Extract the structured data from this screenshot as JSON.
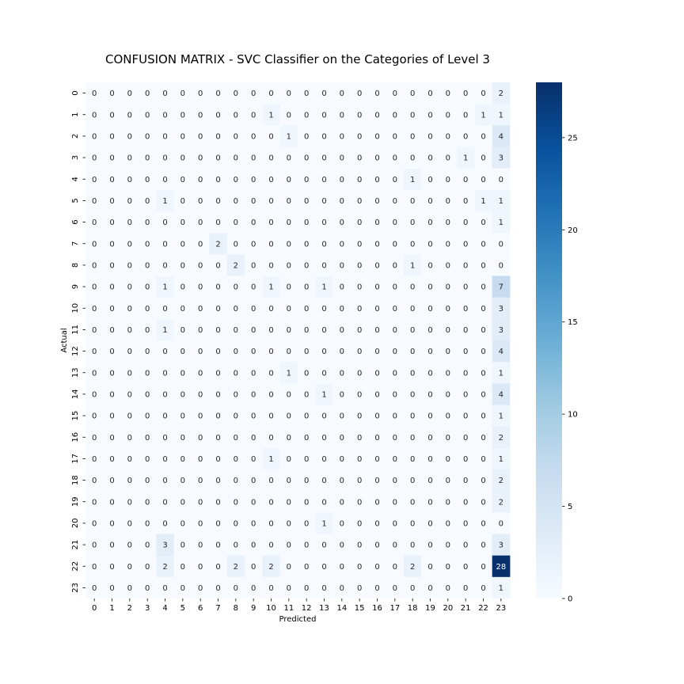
{
  "chart_data": {
    "type": "heatmap",
    "title": "CONFUSION MATRIX - SVC Classifier on the Categories of Level 3",
    "xlabel": "Predicted",
    "ylabel": "Actual",
    "x_categories": [
      "0",
      "1",
      "2",
      "3",
      "4",
      "5",
      "6",
      "7",
      "8",
      "9",
      "10",
      "11",
      "12",
      "13",
      "14",
      "15",
      "16",
      "17",
      "18",
      "19",
      "20",
      "21",
      "22",
      "23"
    ],
    "y_categories": [
      "0",
      "1",
      "2",
      "3",
      "4",
      "5",
      "6",
      "7",
      "8",
      "9",
      "10",
      "11",
      "12",
      "13",
      "14",
      "15",
      "16",
      "17",
      "18",
      "19",
      "20",
      "21",
      "22",
      "23"
    ],
    "values": [
      [
        0,
        0,
        0,
        0,
        0,
        0,
        0,
        0,
        0,
        0,
        0,
        0,
        0,
        0,
        0,
        0,
        0,
        0,
        0,
        0,
        0,
        0,
        0,
        2
      ],
      [
        0,
        0,
        0,
        0,
        0,
        0,
        0,
        0,
        0,
        0,
        1,
        0,
        0,
        0,
        0,
        0,
        0,
        0,
        0,
        0,
        0,
        0,
        1,
        1
      ],
      [
        0,
        0,
        0,
        0,
        0,
        0,
        0,
        0,
        0,
        0,
        0,
        1,
        0,
        0,
        0,
        0,
        0,
        0,
        0,
        0,
        0,
        0,
        0,
        4
      ],
      [
        0,
        0,
        0,
        0,
        0,
        0,
        0,
        0,
        0,
        0,
        0,
        0,
        0,
        0,
        0,
        0,
        0,
        0,
        0,
        0,
        0,
        1,
        0,
        3
      ],
      [
        0,
        0,
        0,
        0,
        0,
        0,
        0,
        0,
        0,
        0,
        0,
        0,
        0,
        0,
        0,
        0,
        0,
        0,
        1,
        0,
        0,
        0,
        0,
        0
      ],
      [
        0,
        0,
        0,
        0,
        1,
        0,
        0,
        0,
        0,
        0,
        0,
        0,
        0,
        0,
        0,
        0,
        0,
        0,
        0,
        0,
        0,
        0,
        1,
        1
      ],
      [
        0,
        0,
        0,
        0,
        0,
        0,
        0,
        0,
        0,
        0,
        0,
        0,
        0,
        0,
        0,
        0,
        0,
        0,
        0,
        0,
        0,
        0,
        0,
        1
      ],
      [
        0,
        0,
        0,
        0,
        0,
        0,
        0,
        2,
        0,
        0,
        0,
        0,
        0,
        0,
        0,
        0,
        0,
        0,
        0,
        0,
        0,
        0,
        0,
        0
      ],
      [
        0,
        0,
        0,
        0,
        0,
        0,
        0,
        0,
        2,
        0,
        0,
        0,
        0,
        0,
        0,
        0,
        0,
        0,
        1,
        0,
        0,
        0,
        0,
        0
      ],
      [
        0,
        0,
        0,
        0,
        1,
        0,
        0,
        0,
        0,
        0,
        1,
        0,
        0,
        1,
        0,
        0,
        0,
        0,
        0,
        0,
        0,
        0,
        0,
        7
      ],
      [
        0,
        0,
        0,
        0,
        0,
        0,
        0,
        0,
        0,
        0,
        0,
        0,
        0,
        0,
        0,
        0,
        0,
        0,
        0,
        0,
        0,
        0,
        0,
        3
      ],
      [
        0,
        0,
        0,
        0,
        1,
        0,
        0,
        0,
        0,
        0,
        0,
        0,
        0,
        0,
        0,
        0,
        0,
        0,
        0,
        0,
        0,
        0,
        0,
        3
      ],
      [
        0,
        0,
        0,
        0,
        0,
        0,
        0,
        0,
        0,
        0,
        0,
        0,
        0,
        0,
        0,
        0,
        0,
        0,
        0,
        0,
        0,
        0,
        0,
        4
      ],
      [
        0,
        0,
        0,
        0,
        0,
        0,
        0,
        0,
        0,
        0,
        0,
        1,
        0,
        0,
        0,
        0,
        0,
        0,
        0,
        0,
        0,
        0,
        0,
        1
      ],
      [
        0,
        0,
        0,
        0,
        0,
        0,
        0,
        0,
        0,
        0,
        0,
        0,
        0,
        1,
        0,
        0,
        0,
        0,
        0,
        0,
        0,
        0,
        0,
        4
      ],
      [
        0,
        0,
        0,
        0,
        0,
        0,
        0,
        0,
        0,
        0,
        0,
        0,
        0,
        0,
        0,
        0,
        0,
        0,
        0,
        0,
        0,
        0,
        0,
        1
      ],
      [
        0,
        0,
        0,
        0,
        0,
        0,
        0,
        0,
        0,
        0,
        0,
        0,
        0,
        0,
        0,
        0,
        0,
        0,
        0,
        0,
        0,
        0,
        0,
        2
      ],
      [
        0,
        0,
        0,
        0,
        0,
        0,
        0,
        0,
        0,
        0,
        1,
        0,
        0,
        0,
        0,
        0,
        0,
        0,
        0,
        0,
        0,
        0,
        0,
        1
      ],
      [
        0,
        0,
        0,
        0,
        0,
        0,
        0,
        0,
        0,
        0,
        0,
        0,
        0,
        0,
        0,
        0,
        0,
        0,
        0,
        0,
        0,
        0,
        0,
        2
      ],
      [
        0,
        0,
        0,
        0,
        0,
        0,
        0,
        0,
        0,
        0,
        0,
        0,
        0,
        0,
        0,
        0,
        0,
        0,
        0,
        0,
        0,
        0,
        0,
        2
      ],
      [
        0,
        0,
        0,
        0,
        0,
        0,
        0,
        0,
        0,
        0,
        0,
        0,
        0,
        1,
        0,
        0,
        0,
        0,
        0,
        0,
        0,
        0,
        0,
        0
      ],
      [
        0,
        0,
        0,
        0,
        3,
        0,
        0,
        0,
        0,
        0,
        0,
        0,
        0,
        0,
        0,
        0,
        0,
        0,
        0,
        0,
        0,
        0,
        0,
        3
      ],
      [
        0,
        0,
        0,
        0,
        2,
        0,
        0,
        0,
        2,
        0,
        2,
        0,
        0,
        0,
        0,
        0,
        0,
        0,
        2,
        0,
        0,
        0,
        0,
        28
      ],
      [
        0,
        0,
        0,
        0,
        0,
        0,
        0,
        0,
        0,
        0,
        0,
        0,
        0,
        0,
        0,
        0,
        0,
        0,
        0,
        0,
        0,
        0,
        0,
        1
      ]
    ],
    "colorbar": {
      "min": 0,
      "max": 28,
      "ticks": [
        0,
        5,
        10,
        15,
        20,
        25
      ],
      "colormap": "Blues",
      "color_low": "#f7fbff",
      "color_high": "#08306b"
    },
    "grid": false,
    "legend": "none"
  }
}
